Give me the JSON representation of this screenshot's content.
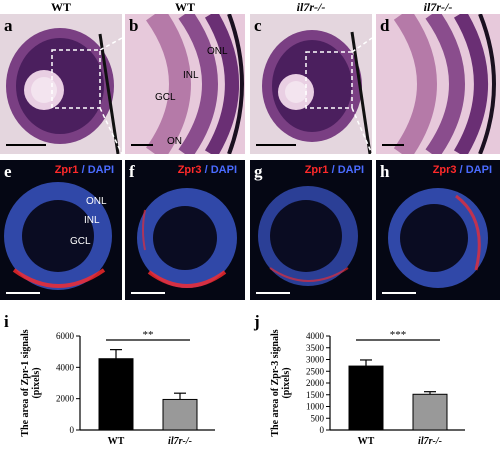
{
  "titles": [
    "WT",
    "WT",
    "il7r-/-",
    "il7r-/-"
  ],
  "he_panels": [
    {
      "label": "a",
      "layers": []
    },
    {
      "label": "b",
      "layers": [
        "ONL",
        "INL",
        "GCL",
        "ON"
      ]
    },
    {
      "label": "c",
      "layers": []
    },
    {
      "label": "d",
      "layers": []
    }
  ],
  "fl_panels": [
    {
      "label": "e",
      "stain_red": "Zpr1",
      "sep": " / ",
      "stain_blue": "DAPI",
      "layers": [
        "ONL",
        "INL",
        "GCL"
      ]
    },
    {
      "label": "f",
      "stain_red": "Zpr3",
      "sep": " / ",
      "stain_blue": "DAPI",
      "layers": []
    },
    {
      "label": "g",
      "stain_red": "Zpr1",
      "sep": " / ",
      "stain_blue": "DAPI",
      "layers": []
    },
    {
      "label": "h",
      "stain_red": "Zpr3",
      "sep": " / ",
      "stain_blue": "DAPI",
      "layers": []
    }
  ],
  "colors": {
    "bar_wt": "#000000",
    "bar_mut": "#999999",
    "he_bg": "#d9c8d3",
    "fl_bg": "#050714",
    "red": "#ff2a2a",
    "blue": "#4a6bff"
  },
  "chart_data": [
    {
      "panel": "i",
      "type": "bar",
      "categories": [
        "WT",
        "il7r-/-"
      ],
      "values": [
        4550,
        1950
      ],
      "errors": [
        580,
        400
      ],
      "ylabel": "The area of Zpr-1 signals (pixels)",
      "ylim": [
        0,
        6000
      ],
      "yticks": [
        0,
        2000,
        4000,
        6000
      ],
      "significance": "**"
    },
    {
      "panel": "j",
      "type": "bar",
      "categories": [
        "WT",
        "il7r-/-"
      ],
      "values": [
        2720,
        1520
      ],
      "errors": [
        260,
        110
      ],
      "ylabel": "The area of Zpr-3 signals (pixels)",
      "ylim": [
        0,
        4000
      ],
      "yticks": [
        0,
        500,
        1000,
        1500,
        2000,
        2500,
        3000,
        3500,
        4000
      ],
      "significance": "***"
    }
  ]
}
